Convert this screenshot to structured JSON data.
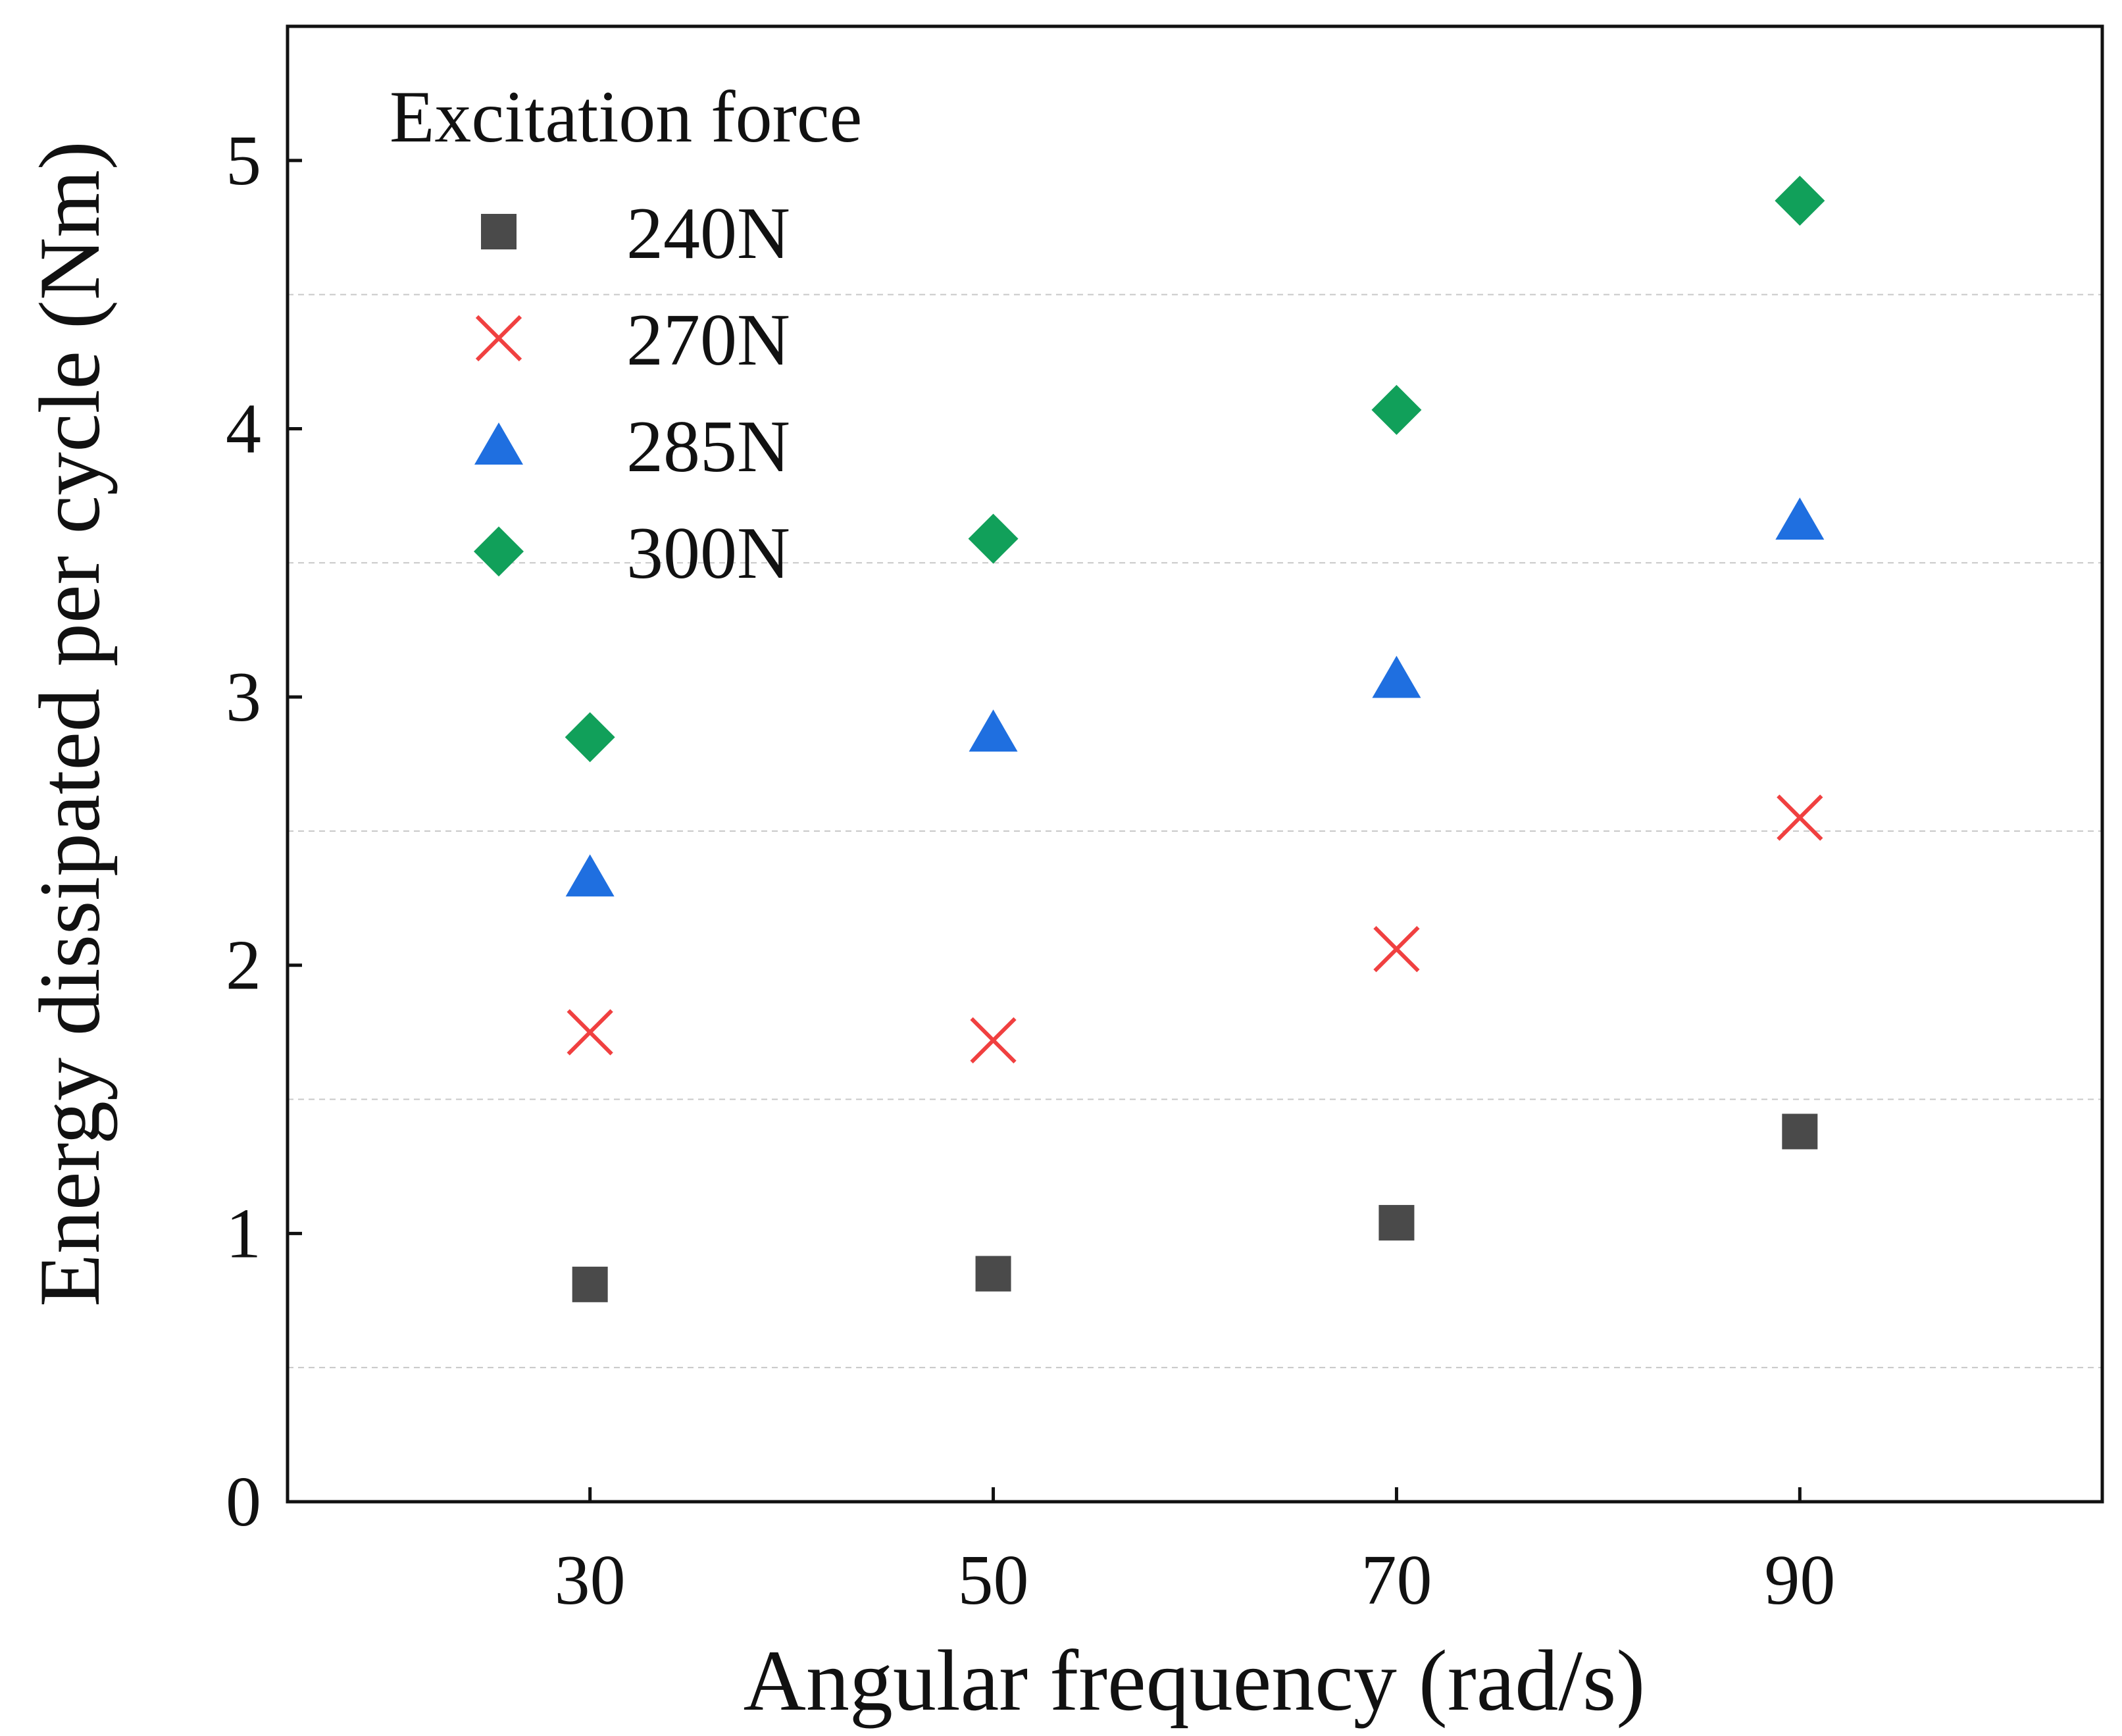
{
  "chart_data": {
    "type": "scatter",
    "title": "",
    "xlabel": "Angular frequency (rad/s)",
    "ylabel": "Energy dissipated per cycle (Nm)",
    "x": [
      30,
      50,
      70,
      90
    ],
    "xlim": [
      15,
      105
    ],
    "ylim": [
      0,
      5.5
    ],
    "xticks": [
      "30",
      "50",
      "70",
      "90"
    ],
    "yticks": [
      "0",
      "1",
      "2",
      "3",
      "4",
      "5"
    ],
    "grid": "horizontal dashed at half units",
    "legend": {
      "title": "Excitation force",
      "placement": "top-left"
    },
    "series": [
      {
        "name": "240N",
        "marker": "square",
        "color": "#4a4a4a",
        "values": [
          0.81,
          0.85,
          1.04,
          1.38
        ]
      },
      {
        "name": "270N",
        "marker": "x",
        "color": "#f04040",
        "values": [
          1.75,
          1.72,
          2.06,
          2.55
        ]
      },
      {
        "name": "285N",
        "marker": "triangle",
        "color": "#1f6fe0",
        "values": [
          2.33,
          2.87,
          3.07,
          3.66
        ]
      },
      {
        "name": "300N",
        "marker": "diamond",
        "color": "#11a05a",
        "values": [
          2.85,
          3.59,
          4.07,
          4.85
        ]
      }
    ]
  }
}
